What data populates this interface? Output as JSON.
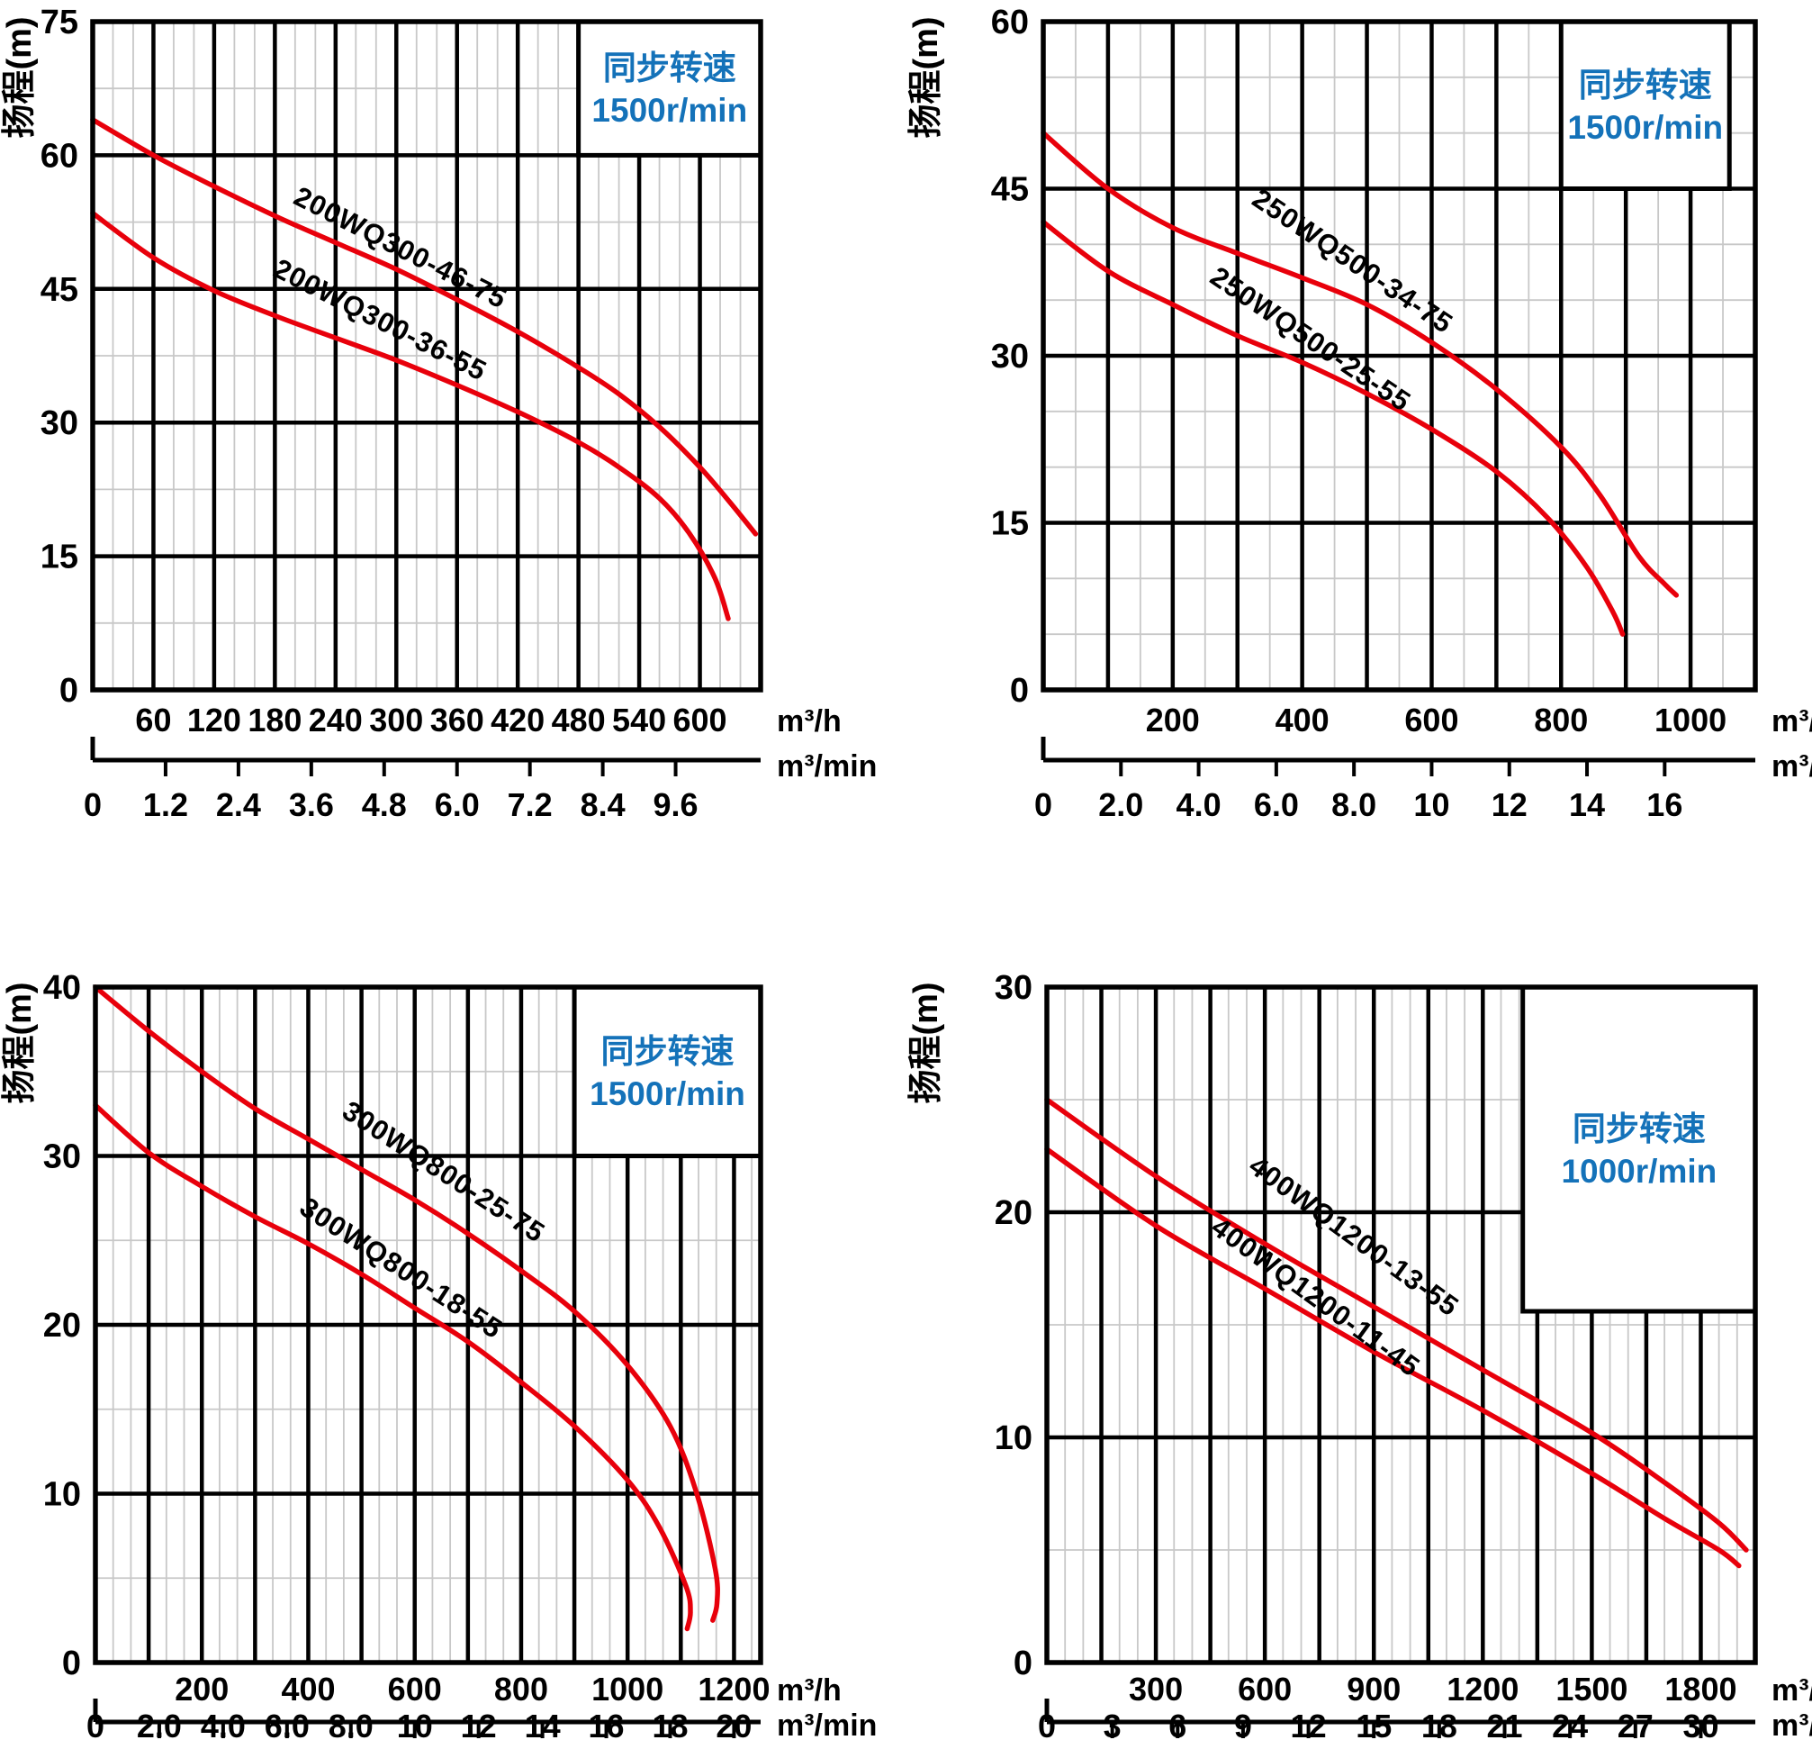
{
  "colors": {
    "curve": "#e8000b",
    "speed_text": "#1472b9",
    "grid_major": "#000000",
    "grid_minor": "#c8c8c8",
    "text": "#000000",
    "background": "#ffffff"
  },
  "shared": {
    "y_axis_title": "扬程(m)",
    "speed_title": "同步转速",
    "flow_unit_hour": "m³/h",
    "flow_unit_minute": "m³/min"
  },
  "chart_data": [
    {
      "type": "line",
      "position": "top-left",
      "speed_label": "1500r/min",
      "y_axis": {
        "title": "扬程(m)",
        "min": 0,
        "max": 75,
        "ticks": [
          0,
          15,
          30,
          45,
          60,
          75
        ],
        "major_step": 15,
        "minor_step": 7.5
      },
      "x_axis": {
        "unit": "m³/h",
        "min": 0,
        "max": 660,
        "labels": [
          60,
          120,
          180,
          240,
          300,
          360,
          420,
          480,
          540,
          600
        ],
        "major_step": 60,
        "minor_step": 20
      },
      "x_axis_minute": {
        "unit": "m³/min",
        "labels": [
          "0",
          "1.2",
          "2.4",
          "3.6",
          "4.8",
          "6.0",
          "7.2",
          "8.4",
          "9.6"
        ],
        "step_value": 1.2
      },
      "legend_box": {
        "x0": 480,
        "x1": 660,
        "h_top": 75,
        "h_bottom": 60
      },
      "series": [
        {
          "name": "200WQ300-46-75",
          "points": [
            [
              0,
              64
            ],
            [
              60,
              60
            ],
            [
              120,
              56.5
            ],
            [
              180,
              53.2
            ],
            [
              240,
              50.2
            ],
            [
              300,
              47.2
            ],
            [
              360,
              43.8
            ],
            [
              420,
              40.2
            ],
            [
              480,
              36.2
            ],
            [
              520,
              33.2
            ],
            [
              560,
              29.5
            ],
            [
              600,
              25
            ],
            [
              630,
              21
            ],
            [
              655,
              17.5
            ]
          ],
          "label": {
            "q": 300,
            "h": 48.7,
            "angle": 27
          }
        },
        {
          "name": "200WQ300-36-55",
          "points": [
            [
              0,
              53.5
            ],
            [
              60,
              48.5
            ],
            [
              120,
              44.8
            ],
            [
              180,
              42
            ],
            [
              240,
              39.5
            ],
            [
              300,
              37
            ],
            [
              360,
              34.2
            ],
            [
              420,
              31.2
            ],
            [
              480,
              27.8
            ],
            [
              520,
              25
            ],
            [
              560,
              21.5
            ],
            [
              590,
              17.5
            ],
            [
              615,
              12.5
            ],
            [
              628,
              8
            ]
          ],
          "label": {
            "q": 280,
            "h": 40.6,
            "angle": 27
          }
        }
      ]
    },
    {
      "type": "line",
      "position": "top-right",
      "speed_label": "1500r/min",
      "y_axis": {
        "title": "扬程(m)",
        "min": 0,
        "max": 60,
        "ticks": [
          0,
          15,
          30,
          45,
          60
        ],
        "major_step": 15,
        "minor_step": 5
      },
      "x_axis": {
        "unit": "m³/h",
        "min": 0,
        "max": 1100,
        "labels": [
          200,
          400,
          600,
          800,
          1000
        ],
        "major_step": 100,
        "minor_step": 50
      },
      "x_axis_minute": {
        "unit": "m³/min",
        "labels": [
          "0",
          "2.0",
          "4.0",
          "6.0",
          "8.0",
          "10",
          "12",
          "14",
          "16"
        ],
        "step_value": 2
      },
      "legend_box": {
        "x0": 800,
        "x1": 1060,
        "h_top": 60,
        "h_bottom": 45
      },
      "series": [
        {
          "name": "250WQ500-34-75",
          "points": [
            [
              0,
              50
            ],
            [
              100,
              45
            ],
            [
              200,
              41.5
            ],
            [
              300,
              39.2
            ],
            [
              400,
              37
            ],
            [
              500,
              34.6
            ],
            [
              600,
              31.2
            ],
            [
              700,
              27
            ],
            [
              800,
              21.8
            ],
            [
              860,
              17.5
            ],
            [
              920,
              12
            ],
            [
              960,
              9.5
            ],
            [
              978,
              8.5
            ]
          ],
          "label": {
            "q": 470,
            "h": 37.8,
            "angle": 34
          }
        },
        {
          "name": "250WQ500-25-55",
          "points": [
            [
              0,
              42
            ],
            [
              100,
              37.6
            ],
            [
              200,
              34.6
            ],
            [
              300,
              31.8
            ],
            [
              400,
              29.4
            ],
            [
              500,
              26.6
            ],
            [
              600,
              23.4
            ],
            [
              700,
              19.6
            ],
            [
              780,
              15.4
            ],
            [
              840,
              11
            ],
            [
              880,
              7
            ],
            [
              895,
              5
            ]
          ],
          "label": {
            "q": 405,
            "h": 30.8,
            "angle": 34
          }
        }
      ]
    },
    {
      "type": "line",
      "position": "bottom-left",
      "speed_label": "1500r/min",
      "y_axis": {
        "title": "扬程(m)",
        "min": 0,
        "max": 40,
        "ticks": [
          0,
          10,
          20,
          30,
          40
        ],
        "major_step": 10,
        "minor_step": 5
      },
      "x_axis": {
        "unit": "m³/h",
        "min": 0,
        "max": 1250,
        "labels": [
          200,
          400,
          600,
          800,
          1000,
          1200
        ],
        "major_step": 100,
        "minor_step": 33.333
      },
      "x_axis_minute": {
        "unit": "m³/min",
        "labels": [
          "0",
          "2.0",
          "4.0",
          "6.0",
          "8.0",
          "10",
          "12",
          "14",
          "16",
          "18",
          "20"
        ],
        "step_value": 2
      },
      "legend_box": {
        "x0": 900,
        "x1": 1250,
        "h_top": 40,
        "h_bottom": 30
      },
      "series": [
        {
          "name": "300WQ800-25-75",
          "points": [
            [
              0,
              40
            ],
            [
              100,
              37.4
            ],
            [
              200,
              35
            ],
            [
              300,
              32.8
            ],
            [
              400,
              31
            ],
            [
              500,
              29.2
            ],
            [
              600,
              27.4
            ],
            [
              700,
              25.4
            ],
            [
              800,
              23.2
            ],
            [
              900,
              20.8
            ],
            [
              1000,
              17.6
            ],
            [
              1080,
              14
            ],
            [
              1130,
              10
            ],
            [
              1165,
              5.5
            ],
            [
              1168,
              3.5
            ],
            [
              1160,
              2.5
            ]
          ],
          "label": {
            "q": 645,
            "h": 28.6,
            "angle": 33
          }
        },
        {
          "name": "300WQ800-18-55",
          "points": [
            [
              0,
              33
            ],
            [
              100,
              30.2
            ],
            [
              200,
              28.2
            ],
            [
              300,
              26.4
            ],
            [
              400,
              24.8
            ],
            [
              500,
              23
            ],
            [
              600,
              21
            ],
            [
              700,
              19
            ],
            [
              800,
              16.6
            ],
            [
              900,
              14
            ],
            [
              1000,
              10.8
            ],
            [
              1060,
              8
            ],
            [
              1110,
              4.5
            ],
            [
              1118,
              3
            ],
            [
              1112,
              2
            ]
          ],
          "label": {
            "q": 565,
            "h": 22.9,
            "angle": 33
          }
        }
      ]
    },
    {
      "type": "line",
      "position": "bottom-right",
      "speed_label": "1000r/min",
      "y_axis": {
        "title": "扬程(m)",
        "min": 0,
        "max": 30,
        "ticks": [
          0,
          10,
          20,
          30
        ],
        "major_step": 10,
        "minor_step": 5
      },
      "x_axis": {
        "unit": "m³/h",
        "min": 0,
        "max": 1950,
        "labels": [
          300,
          600,
          900,
          1200,
          1500,
          1800
        ],
        "major_step": 150,
        "minor_step": 50
      },
      "x_axis_minute": {
        "unit": "m³/min",
        "labels": [
          "0",
          "3",
          "6",
          "9",
          "12",
          "15",
          "18",
          "21",
          "24",
          "27",
          "30"
        ],
        "step_value": 3
      },
      "legend_box": {
        "x0": 1310,
        "x1": 1950,
        "h_top": 30,
        "h_bottom": 15.6
      },
      "series": [
        {
          "name": "400WQ1200-13-55",
          "points": [
            [
              0,
              25
            ],
            [
              300,
              21.6
            ],
            [
              600,
              18.6
            ],
            [
              900,
              15.8
            ],
            [
              1200,
              13
            ],
            [
              1500,
              10.2
            ],
            [
              1700,
              8
            ],
            [
              1850,
              6.2
            ],
            [
              1925,
              5
            ]
          ],
          "label": {
            "q": 830,
            "h": 18.6,
            "angle": 36
          }
        },
        {
          "name": "400WQ1200-11-45",
          "points": [
            [
              0,
              22.8
            ],
            [
              300,
              19.4
            ],
            [
              600,
              16.6
            ],
            [
              900,
              13.8
            ],
            [
              1200,
              11.2
            ],
            [
              1500,
              8.4
            ],
            [
              1700,
              6.4
            ],
            [
              1850,
              5
            ],
            [
              1905,
              4.3
            ]
          ],
          "label": {
            "q": 725,
            "h": 15.9,
            "angle": 36
          }
        }
      ]
    }
  ]
}
